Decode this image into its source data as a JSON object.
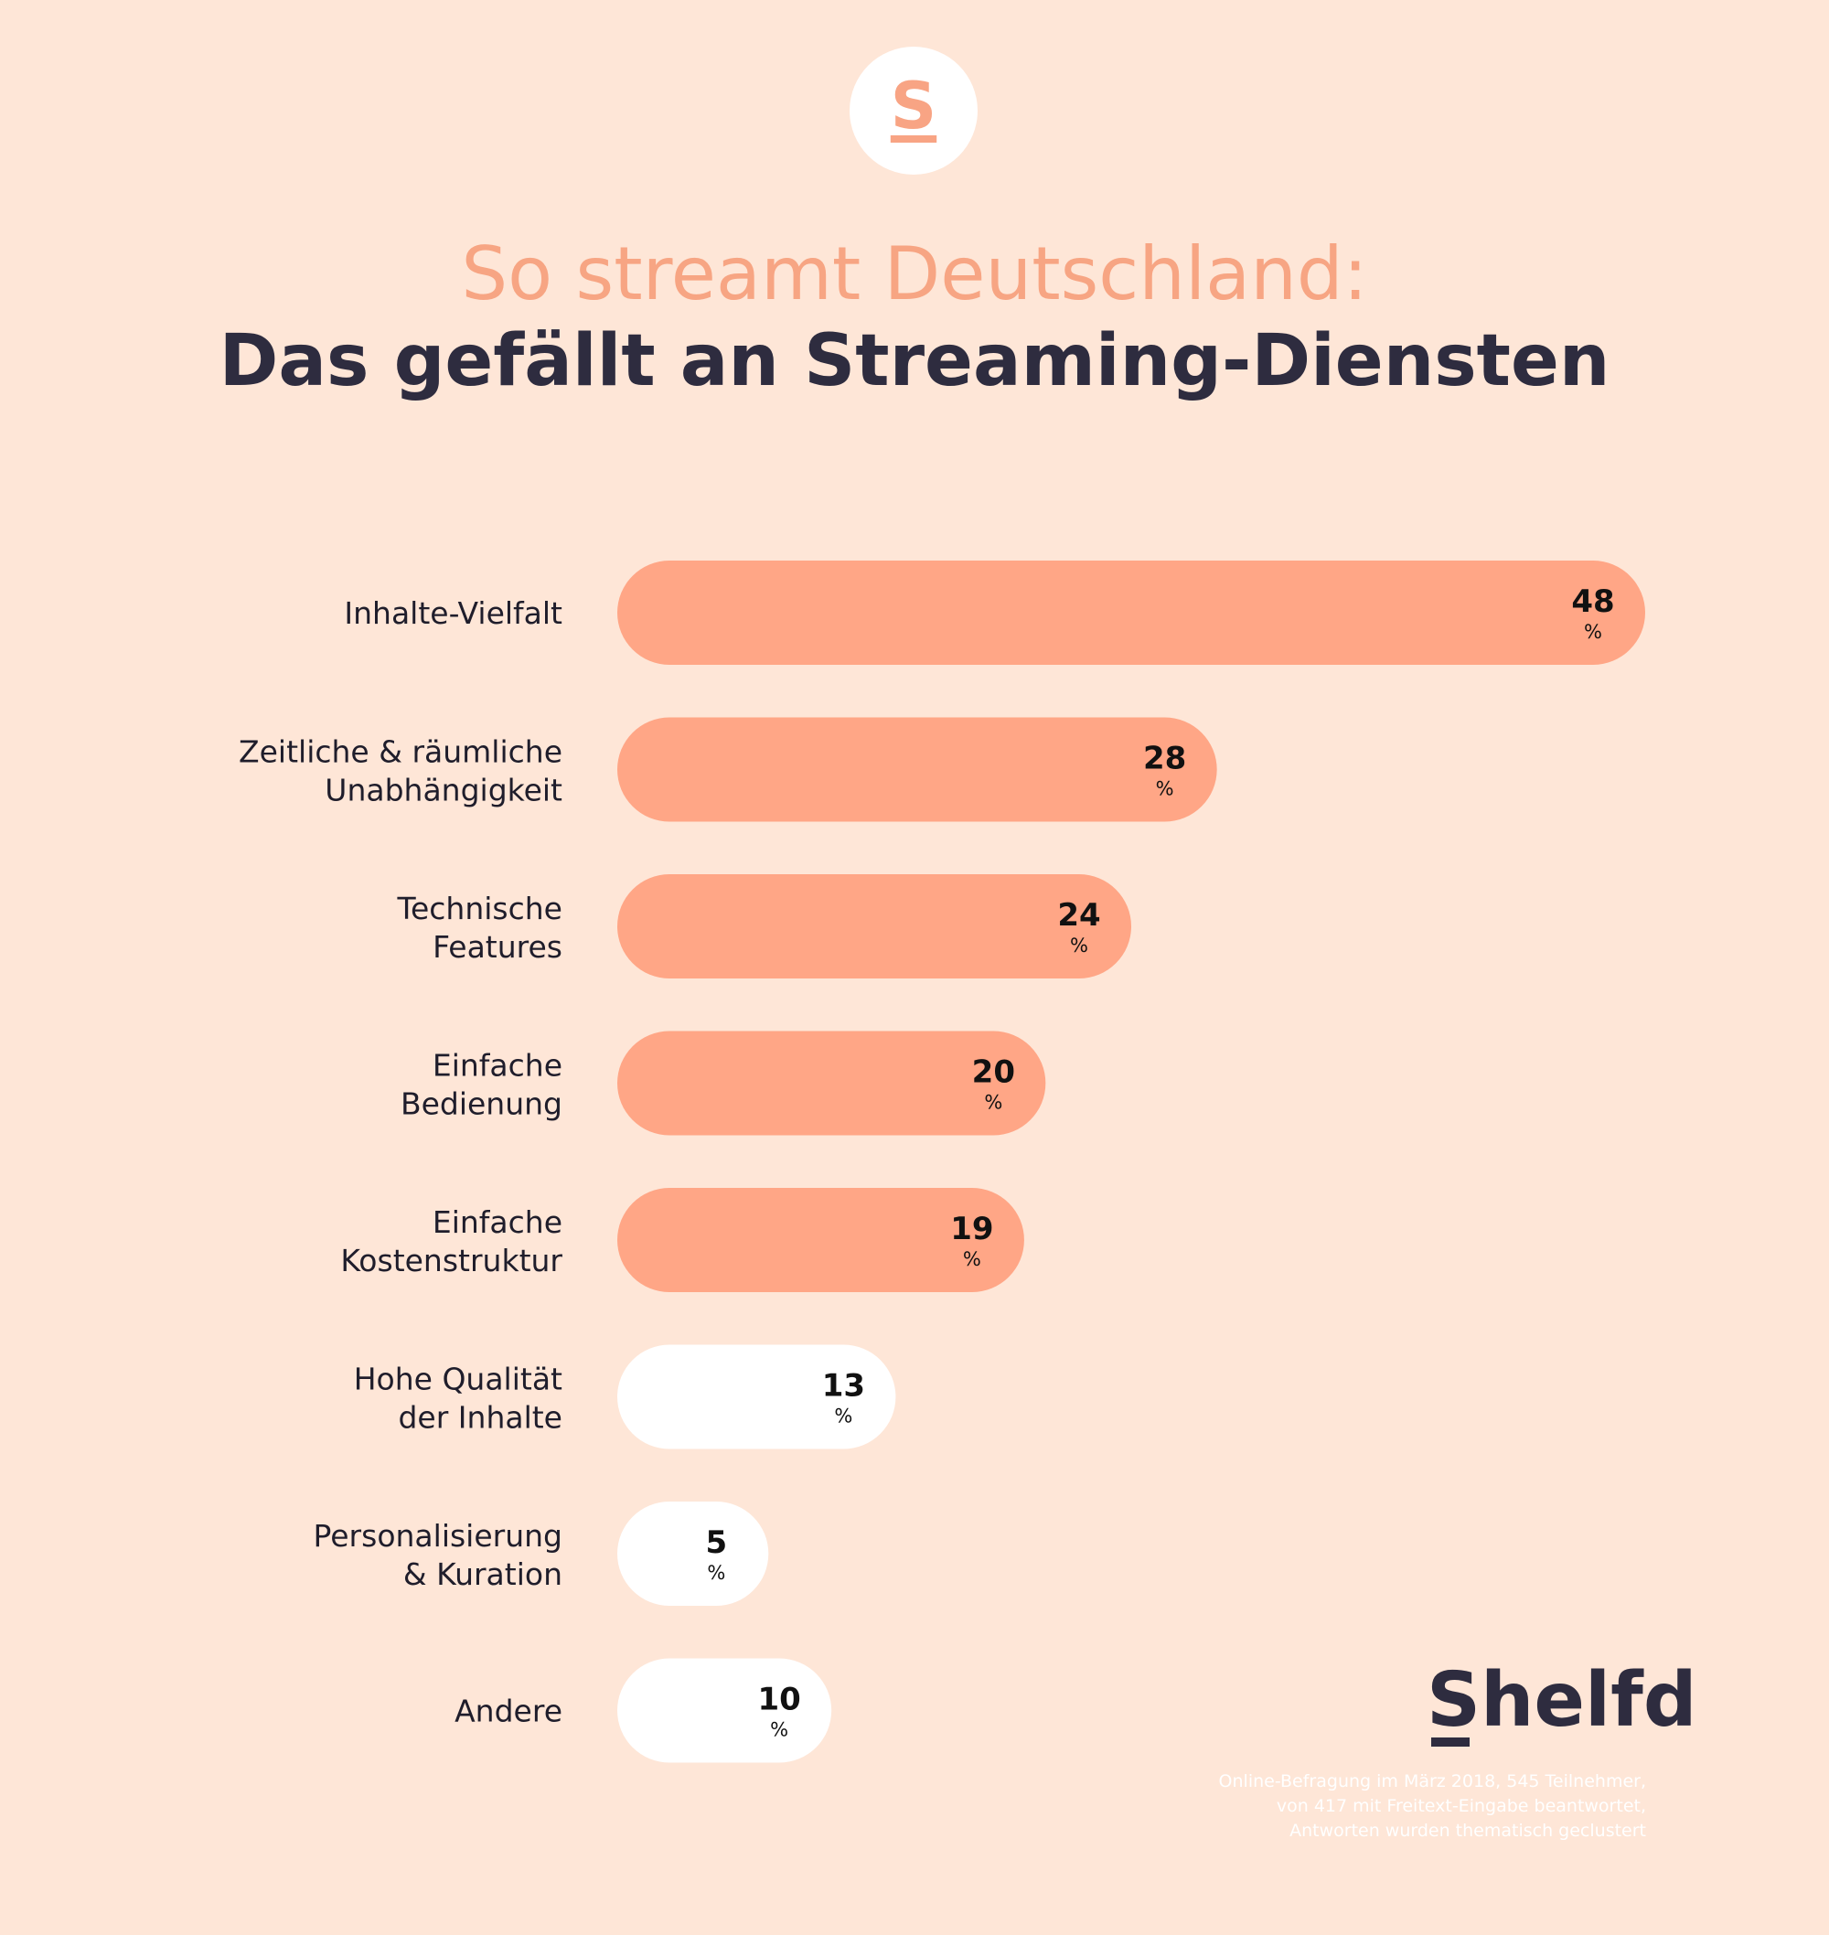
{
  "logo": {
    "letter": "S",
    "brand": "Shelfd"
  },
  "header": {
    "line1": "So streamt Deutschland:",
    "line2": "Das gefällt an Streaming-Diensten"
  },
  "chart_data": {
    "type": "bar",
    "orientation": "horizontal",
    "title": "So streamt Deutschland: Das gefällt an Streaming-Diensten",
    "unit": "%",
    "categories": [
      [
        "Inhalte-Vielfalt"
      ],
      [
        "Zeitliche & räumliche",
        "Unabhängigkeit"
      ],
      [
        "Technische",
        "Features"
      ],
      [
        "Einfache",
        "Bedienung"
      ],
      [
        "Einfache",
        "Kostenstruktur"
      ],
      [
        "Hohe Qualität",
        "der Inhalte"
      ],
      [
        "Personalisierung",
        "& Kuration"
      ],
      [
        "Andere"
      ]
    ],
    "values": [
      48,
      28,
      24,
      20,
      19,
      13,
      5,
      10
    ],
    "highlighted": [
      true,
      true,
      true,
      true,
      true,
      false,
      false,
      false
    ],
    "xlim": [
      0,
      48
    ],
    "colors": {
      "highlight": "#FFA686",
      "normal": "#FFFFFF",
      "label": "#1F1D2B",
      "value": "#111111"
    }
  },
  "footnote": [
    "Online-Befragung im März 2018, 545 Teilnehmer,",
    "von 417 mit Freitext-Eingabe beantwortet,",
    "Antworten wurden thematisch geclustert"
  ]
}
